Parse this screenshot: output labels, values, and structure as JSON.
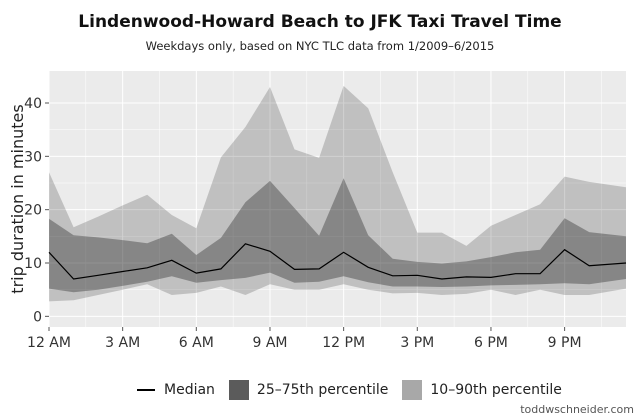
{
  "chart_data": {
    "type": "area",
    "title": "Lindenwood-Howard Beach to JFK Taxi Travel Time",
    "subtitle": "Weekdays only, based on NYC TLC data from 1/2009–6/2015",
    "ylabel": "trip duration in minutes",
    "xlabel": "",
    "ylim": [
      -2,
      46
    ],
    "xlim": [
      0,
      23.5
    ],
    "yticks": [
      0,
      10,
      20,
      30,
      40
    ],
    "xticks": [
      {
        "x": 0,
        "label": "12 AM"
      },
      {
        "x": 3,
        "label": "3 AM"
      },
      {
        "x": 6,
        "label": "6 AM"
      },
      {
        "x": 9,
        "label": "9 AM"
      },
      {
        "x": 12,
        "label": "12 PM"
      },
      {
        "x": 15,
        "label": "3 PM"
      },
      {
        "x": 18,
        "label": "6 PM"
      },
      {
        "x": 21,
        "label": "9 PM"
      }
    ],
    "grid": true,
    "legend_position": "bottom",
    "x": [
      0,
      1,
      2,
      3,
      4,
      5,
      6,
      7,
      8,
      9,
      10,
      11,
      12,
      13,
      14,
      15,
      16,
      17,
      18,
      19,
      20,
      21,
      22,
      23.5
    ],
    "series": [
      {
        "name": "Median",
        "kind": "line",
        "color": "#000000",
        "values": [
          12.0,
          7.0,
          7.7,
          8.4,
          9.1,
          10.5,
          8.1,
          8.9,
          13.6,
          12.2,
          8.8,
          8.9,
          12.0,
          9.2,
          7.6,
          7.7,
          7.0,
          7.4,
          7.3,
          8.0,
          8.0,
          12.5,
          9.5,
          10.0
        ]
      },
      {
        "name": "25–75th percentile",
        "kind": "band",
        "color": "#5b5b5b",
        "lower": [
          5.2,
          4.5,
          5.0,
          5.7,
          6.5,
          7.5,
          6.3,
          6.8,
          7.2,
          8.2,
          6.3,
          6.5,
          7.5,
          6.4,
          5.6,
          5.6,
          5.5,
          5.6,
          5.8,
          5.9,
          6.0,
          6.2,
          6.0,
          7.0
        ],
        "upper": [
          18.3,
          15.2,
          14.8,
          14.3,
          13.7,
          15.5,
          11.5,
          14.7,
          21.4,
          25.4,
          20.3,
          15.1,
          25.9,
          15.2,
          10.8,
          10.2,
          9.9,
          10.3,
          11.1,
          12.0,
          12.5,
          18.4,
          15.8,
          15.0
        ]
      },
      {
        "name": "10–90th percentile",
        "kind": "band",
        "color": "#a8a8a8",
        "lower": [
          2.8,
          3.0,
          4.0,
          5.0,
          6.0,
          4.0,
          4.4,
          5.6,
          4.0,
          6.0,
          5.0,
          5.0,
          6.0,
          5.0,
          4.3,
          4.4,
          4.0,
          4.2,
          5.0,
          4.0,
          5.0,
          4.0,
          4.0,
          5.2
        ],
        "upper": [
          27.0,
          16.7,
          18.7,
          20.8,
          22.8,
          19.0,
          16.5,
          29.8,
          35.5,
          43.0,
          31.3,
          29.7,
          43.2,
          39.0,
          27.0,
          15.7,
          15.7,
          13.2,
          17.0,
          19.0,
          21.0,
          26.2,
          25.2,
          24.2
        ]
      }
    ],
    "colors": {
      "panel": "#ebebeb",
      "grid": "#ffffff"
    }
  },
  "legend": {
    "items": [
      {
        "label": "Median"
      },
      {
        "label": "25–75th percentile"
      },
      {
        "label": "10–90th percentile"
      }
    ]
  },
  "credit": "toddwschneider.com"
}
